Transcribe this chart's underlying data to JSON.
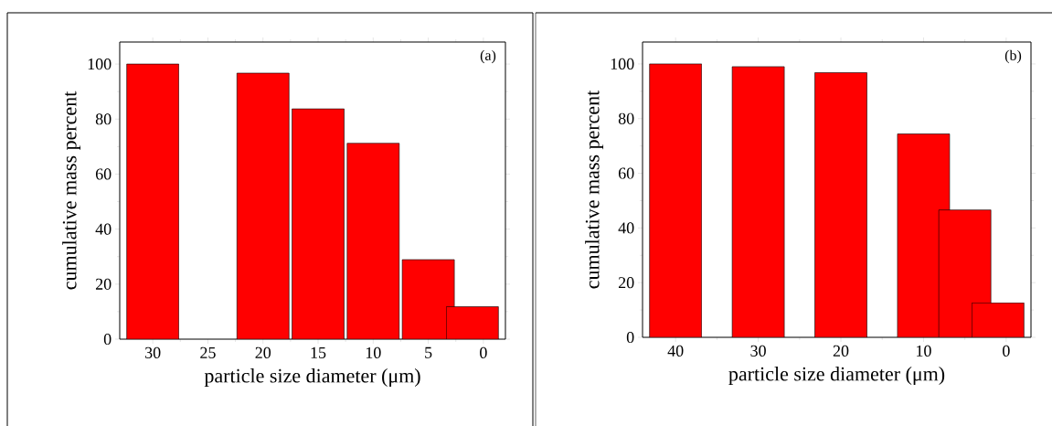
{
  "chart_data": [
    {
      "type": "bar",
      "x": [
        30,
        20,
        15,
        10,
        5,
        1
      ],
      "values": [
        100,
        96.7,
        83.7,
        71.2,
        28.9,
        11.8
      ],
      "color": "#ff0000",
      "xlabel": "particle size diameter (μm)",
      "ylabel": "cumulative mass percent",
      "annotations": [
        "(a)"
      ],
      "xlim": [
        33,
        -2
      ],
      "ylim": [
        0,
        108
      ],
      "xticks": [
        30,
        25,
        20,
        15,
        10,
        5,
        0
      ],
      "yticks": [
        0,
        20,
        40,
        60,
        80,
        100
      ]
    },
    {
      "type": "bar",
      "x": [
        40,
        30,
        20,
        10,
        5,
        1
      ],
      "values": [
        100,
        99.0,
        96.8,
        74.4,
        46.6,
        12.6
      ],
      "color": "#ff0000",
      "xlabel": "particle size diameter (μm)",
      "ylabel": "cumulative mass percent",
      "annotations": [
        "(b)"
      ],
      "xlim": [
        44,
        -3
      ],
      "ylim": [
        0,
        108
      ],
      "xticks": [
        40,
        30,
        20,
        10,
        0
      ],
      "yticks": [
        0,
        20,
        40,
        60,
        80,
        100
      ]
    }
  ]
}
